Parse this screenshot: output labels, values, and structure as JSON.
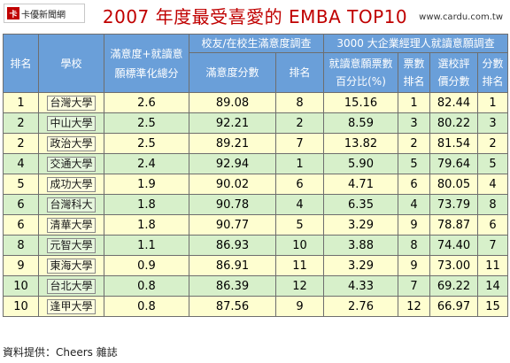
{
  "logo_text": "卡優新聞網",
  "title": "2007 年度最受喜愛的 EMBA   TOP10",
  "site": "www.cardu.com.tw",
  "headers": {
    "rank": "排名",
    "school": "學校",
    "combined": "滿意度+就讀意願標準化總分",
    "group_alumni": "校友/在校生滿意度調查",
    "sat_score": "滿意度分數",
    "sat_rank": "排名",
    "group_manager": "3000 大企業經理人就讀意願調查",
    "vote_pct": "就讀意願票數百分比(%)",
    "vote_rank": "票數排名",
    "eval_score": "選校評價分數",
    "eval_rank": "分數排名"
  },
  "rows": [
    {
      "rank": "1",
      "school": "台灣大學",
      "combined": "2.6",
      "sat_score": "89.08",
      "sat_rank": "8",
      "vote_pct": "15.16",
      "vote_rank": "1",
      "eval_score": "82.44",
      "eval_rank": "1"
    },
    {
      "rank": "2",
      "school": "中山大學",
      "combined": "2.5",
      "sat_score": "92.21",
      "sat_rank": "2",
      "vote_pct": "8.59",
      "vote_rank": "3",
      "eval_score": "80.22",
      "eval_rank": "3"
    },
    {
      "rank": "2",
      "school": "政治大學",
      "combined": "2.5",
      "sat_score": "89.21",
      "sat_rank": "7",
      "vote_pct": "13.82",
      "vote_rank": "2",
      "eval_score": "81.54",
      "eval_rank": "2"
    },
    {
      "rank": "4",
      "school": "交通大學",
      "combined": "2.4",
      "sat_score": "92.94",
      "sat_rank": "1",
      "vote_pct": "5.90",
      "vote_rank": "5",
      "eval_score": "79.64",
      "eval_rank": "5"
    },
    {
      "rank": "5",
      "school": "成功大學",
      "combined": "1.9",
      "sat_score": "90.02",
      "sat_rank": "6",
      "vote_pct": "4.71",
      "vote_rank": "6",
      "eval_score": "80.05",
      "eval_rank": "4"
    },
    {
      "rank": "6",
      "school": "台灣科大",
      "combined": "1.8",
      "sat_score": "90.78",
      "sat_rank": "4",
      "vote_pct": "6.35",
      "vote_rank": "4",
      "eval_score": "73.79",
      "eval_rank": "8"
    },
    {
      "rank": "6",
      "school": "清華大學",
      "combined": "1.8",
      "sat_score": "90.77",
      "sat_rank": "5",
      "vote_pct": "3.29",
      "vote_rank": "9",
      "eval_score": "78.87",
      "eval_rank": "6"
    },
    {
      "rank": "8",
      "school": "元智大學",
      "combined": "1.1",
      "sat_score": "86.93",
      "sat_rank": "10",
      "vote_pct": "3.88",
      "vote_rank": "8",
      "eval_score": "74.40",
      "eval_rank": "7"
    },
    {
      "rank": "9",
      "school": "東海大學",
      "combined": "0.9",
      "sat_score": "86.91",
      "sat_rank": "11",
      "vote_pct": "3.29",
      "vote_rank": "9",
      "eval_score": "73.00",
      "eval_rank": "11"
    },
    {
      "rank": "10",
      "school": "台北大學",
      "combined": "0.8",
      "sat_score": "86.39",
      "sat_rank": "12",
      "vote_pct": "4.33",
      "vote_rank": "7",
      "eval_score": "69.22",
      "eval_rank": "14"
    },
    {
      "rank": "10",
      "school": "逢甲大學",
      "combined": "0.8",
      "sat_score": "87.56",
      "sat_rank": "9",
      "vote_pct": "2.76",
      "vote_rank": "12",
      "eval_score": "66.97",
      "eval_rank": "15"
    }
  ],
  "source": "資料提供：Cheers 雜誌",
  "colors": {
    "header_bg": "#6a9fd9",
    "odd_row": "#fefed0",
    "even_row": "#d7f0ca",
    "title": "#c00000"
  }
}
